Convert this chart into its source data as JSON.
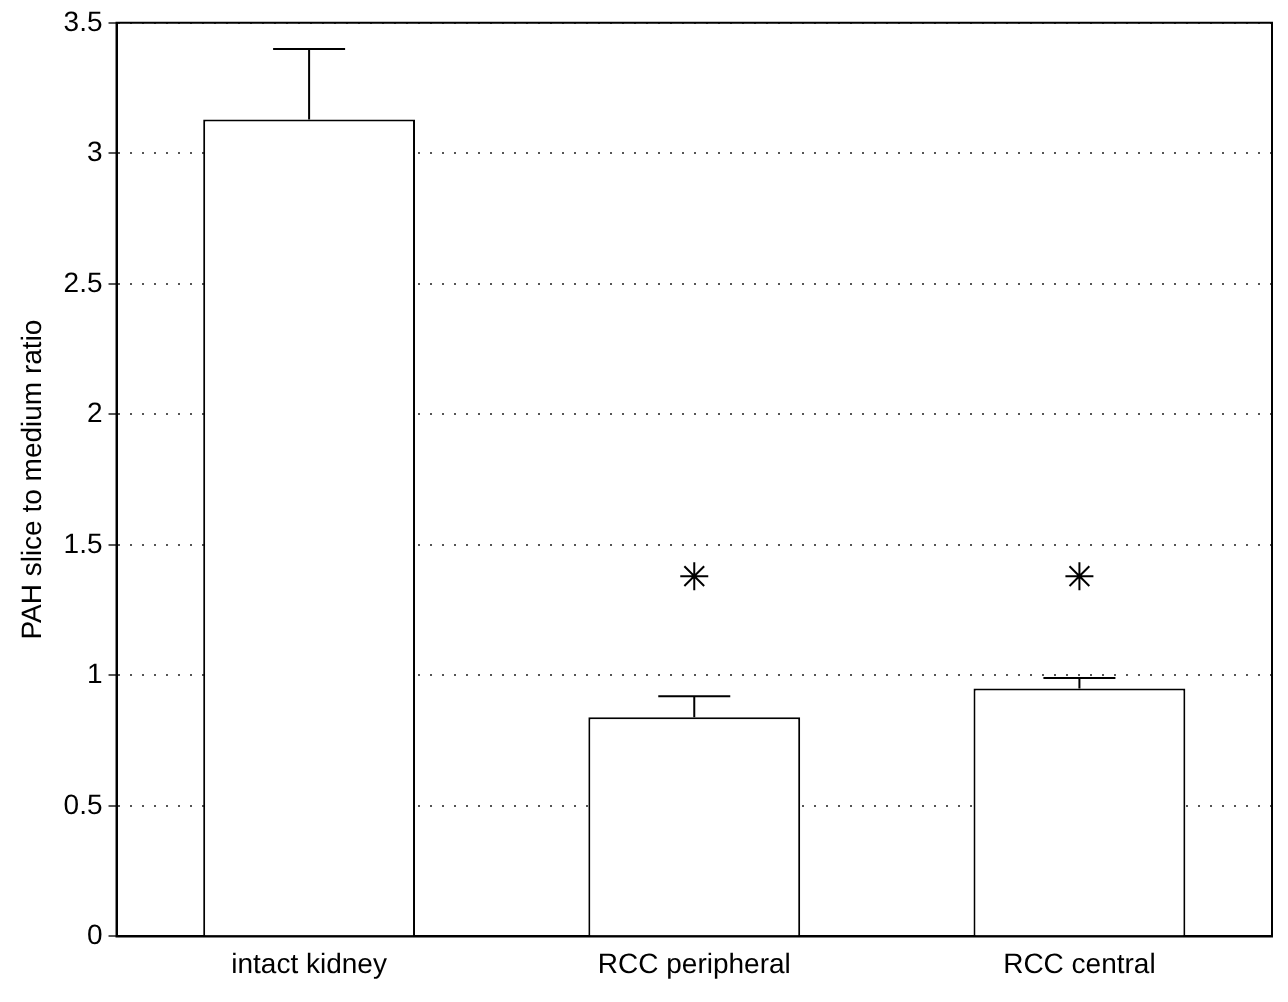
{
  "chart_data": {
    "type": "bar",
    "ylabel": "PAH slice to medium ratio",
    "categories": [
      "intact kidney",
      "RCC peripheral",
      "RCC central"
    ],
    "series": [
      {
        "color": "#ffffff",
        "values": [
          3.13,
          0.84,
          0.95
        ],
        "errors": [
          [
            3.13,
            3.4
          ],
          [
            0.84,
            0.92
          ],
          [
            0.95,
            0.99
          ]
        ]
      },
      {
        "type": "scatter",
        "color": "#000000",
        "x": [
          "RCC peripheral",
          "RCC central"
        ],
        "values": [
          1.38,
          1.38
        ],
        "marker": "cross"
      }
    ],
    "ylim": [
      0,
      3.5
    ],
    "yticks": [
      0,
      0.5,
      1,
      1.5,
      2,
      2.5,
      3,
      3.5
    ],
    "grid": "y",
    "legend": false
  }
}
